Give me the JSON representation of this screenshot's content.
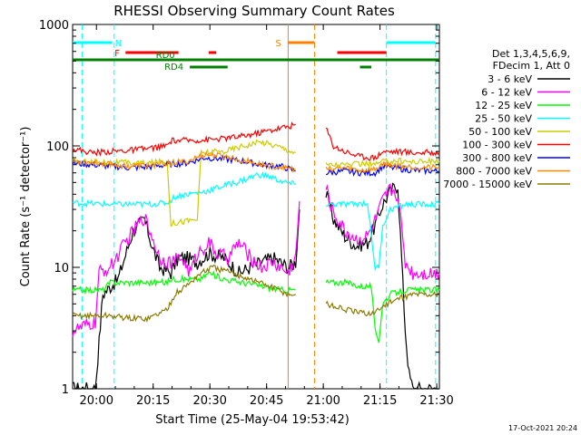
{
  "chart_data": {
    "type": "line",
    "title": "RHESSI Observing Summary Count Rates",
    "xlabel": "Start Time (25-May-04 19:53:42)",
    "ylabel": "Count Rate (s⁻¹ detector⁻¹)",
    "yscale": "log",
    "ylim": [
      1,
      1000
    ],
    "xlim_minutes_after_19_53_42": [
      0,
      97
    ],
    "x_ticks": [
      "20:00",
      "20:15",
      "20:30",
      "20:45",
      "21:00",
      "21:15",
      "21:30"
    ],
    "y_ticks": [
      "1",
      "10",
      "100",
      "1000"
    ],
    "timestamp": "17-Oct-2021 20:24",
    "legend_header": [
      "Det 1,3,4,5,6,9,",
      "FDecim 1, Att 0"
    ],
    "legend_position": "right",
    "series": [
      {
        "name": "3 - 6 keV",
        "color": "#000000",
        "points": [
          [
            0,
            1.0
          ],
          [
            6,
            1.0
          ],
          [
            8,
            6.0
          ],
          [
            12,
            8
          ],
          [
            16,
            20
          ],
          [
            19,
            25
          ],
          [
            21,
            15
          ],
          [
            23,
            10
          ],
          [
            26,
            9
          ],
          [
            28,
            12
          ],
          [
            30,
            12
          ],
          [
            33,
            11
          ],
          [
            36,
            13
          ],
          [
            40,
            12
          ],
          [
            44,
            9
          ],
          [
            47,
            10
          ],
          [
            50,
            11
          ],
          [
            53,
            12
          ],
          [
            57,
            10
          ],
          [
            59,
            11
          ],
          [
            60,
            30
          ],
          [
            67,
            40
          ],
          [
            69,
            25
          ],
          [
            72,
            18
          ],
          [
            75,
            15
          ],
          [
            78,
            16
          ],
          [
            80,
            22
          ],
          [
            82,
            33
          ],
          [
            84,
            42
          ],
          [
            86,
            48
          ],
          [
            88,
            3
          ],
          [
            89,
            1.3
          ],
          [
            90,
            1.0
          ],
          [
            97,
            1.0
          ]
        ]
      },
      {
        "name": "6 - 12 keV",
        "color": "#ff00ff",
        "points": [
          [
            0,
            3.0
          ],
          [
            6,
            3.5
          ],
          [
            7,
            9
          ],
          [
            10,
            10
          ],
          [
            14,
            16
          ],
          [
            17,
            22
          ],
          [
            19,
            26
          ],
          [
            21,
            18
          ],
          [
            23,
            12
          ],
          [
            26,
            11
          ],
          [
            29,
            12
          ],
          [
            31,
            9
          ],
          [
            33,
            13
          ],
          [
            36,
            16
          ],
          [
            38,
            13
          ],
          [
            41,
            12
          ],
          [
            44,
            16
          ],
          [
            47,
            12
          ],
          [
            50,
            10
          ],
          [
            53,
            11
          ],
          [
            57,
            9
          ],
          [
            59,
            12
          ],
          [
            60,
            35
          ],
          [
            67,
            45
          ],
          [
            69,
            28
          ],
          [
            72,
            20
          ],
          [
            75,
            17
          ],
          [
            78,
            18
          ],
          [
            80,
            24
          ],
          [
            82,
            35
          ],
          [
            84,
            44
          ],
          [
            86,
            40
          ],
          [
            88,
            11
          ],
          [
            90,
            9
          ],
          [
            92,
            9
          ],
          [
            97,
            9
          ]
        ]
      },
      {
        "name": "12 - 25 keV",
        "color": "#00ff00",
        "points": [
          [
            0,
            6.5
          ],
          [
            8,
            6.5
          ],
          [
            10,
            7.5
          ],
          [
            16,
            7.5
          ],
          [
            25,
            7.5
          ],
          [
            26,
            8
          ],
          [
            30,
            8
          ],
          [
            34,
            8
          ],
          [
            36,
            9
          ],
          [
            40,
            8
          ],
          [
            45,
            7.5
          ],
          [
            50,
            7
          ],
          [
            55,
            6.5
          ],
          [
            59,
            6.5
          ],
          [
            67,
            7.5
          ],
          [
            72,
            7.5
          ],
          [
            76,
            7
          ],
          [
            79,
            7
          ],
          [
            80,
            3.0
          ],
          [
            81,
            2.5
          ],
          [
            82,
            5
          ],
          [
            84,
            6
          ],
          [
            88,
            6.5
          ],
          [
            97,
            6.5
          ]
        ]
      },
      {
        "name": "25 - 50 keV",
        "color": "#00ffff",
        "points": [
          [
            0,
            34
          ],
          [
            10,
            33
          ],
          [
            20,
            33
          ],
          [
            25,
            34
          ],
          [
            27,
            38
          ],
          [
            30,
            40
          ],
          [
            35,
            42
          ],
          [
            40,
            47
          ],
          [
            45,
            52
          ],
          [
            49,
            58
          ],
          [
            52,
            56
          ],
          [
            56,
            50
          ],
          [
            59,
            48
          ],
          [
            67,
            33
          ],
          [
            74,
            33
          ],
          [
            78,
            34
          ],
          [
            80,
            10
          ],
          [
            81,
            10
          ],
          [
            82,
            22
          ],
          [
            84,
            30
          ],
          [
            88,
            33
          ],
          [
            97,
            33
          ]
        ]
      },
      {
        "name": "50 - 100 keV",
        "color": "#cccc00",
        "points": [
          [
            0,
            74
          ],
          [
            10,
            73
          ],
          [
            20,
            72
          ],
          [
            25,
            75
          ],
          [
            26,
            23
          ],
          [
            33,
            25
          ],
          [
            34,
            88
          ],
          [
            40,
            90
          ],
          [
            45,
            100
          ],
          [
            50,
            108
          ],
          [
            54,
            100
          ],
          [
            59,
            88
          ],
          [
            67,
            70
          ],
          [
            74,
            70
          ],
          [
            78,
            72
          ],
          [
            80,
            70
          ],
          [
            82,
            74
          ],
          [
            86,
            76
          ],
          [
            90,
            74
          ],
          [
            97,
            75
          ]
        ]
      },
      {
        "name": "100 - 300 keV",
        "color": "#ff0000",
        "points": [
          [
            0,
            95
          ],
          [
            5,
            88
          ],
          [
            10,
            90
          ],
          [
            15,
            92
          ],
          [
            20,
            95
          ],
          [
            25,
            100
          ],
          [
            26,
            110
          ],
          [
            35,
            112
          ],
          [
            40,
            115
          ],
          [
            45,
            120
          ],
          [
            50,
            130
          ],
          [
            55,
            140
          ],
          [
            59,
            150
          ],
          [
            67,
            140
          ],
          [
            69,
            100
          ],
          [
            72,
            90
          ],
          [
            76,
            82
          ],
          [
            80,
            80
          ],
          [
            82,
            90
          ],
          [
            86,
            90
          ],
          [
            90,
            88
          ],
          [
            97,
            88
          ]
        ]
      },
      {
        "name": "300 - 800 keV",
        "color": "#0000ff",
        "points": [
          [
            0,
            72
          ],
          [
            10,
            68
          ],
          [
            15,
            66
          ],
          [
            20,
            67
          ],
          [
            25,
            70
          ],
          [
            30,
            72
          ],
          [
            35,
            80
          ],
          [
            40,
            78
          ],
          [
            45,
            75
          ],
          [
            50,
            70
          ],
          [
            55,
            68
          ],
          [
            59,
            62
          ],
          [
            67,
            60
          ],
          [
            72,
            62
          ],
          [
            76,
            60
          ],
          [
            80,
            60
          ],
          [
            82,
            68
          ],
          [
            86,
            65
          ],
          [
            90,
            63
          ],
          [
            97,
            62
          ]
        ]
      },
      {
        "name": "800 - 7000 keV",
        "color": "#ff8800",
        "points": [
          [
            0,
            75
          ],
          [
            10,
            71
          ],
          [
            15,
            68
          ],
          [
            20,
            69
          ],
          [
            25,
            72
          ],
          [
            30,
            74
          ],
          [
            35,
            85
          ],
          [
            40,
            82
          ],
          [
            45,
            76
          ],
          [
            50,
            70
          ],
          [
            55,
            67
          ],
          [
            59,
            64
          ],
          [
            67,
            64
          ],
          [
            72,
            66
          ],
          [
            76,
            63
          ],
          [
            80,
            64
          ],
          [
            82,
            71
          ],
          [
            86,
            69
          ],
          [
            90,
            67
          ],
          [
            97,
            66
          ]
        ]
      },
      {
        "name": "7000 - 15000 keV",
        "color": "#8b7b00",
        "points": [
          [
            0,
            4.0
          ],
          [
            5,
            4.0
          ],
          [
            10,
            4.0
          ],
          [
            15,
            3.8
          ],
          [
            20,
            3.8
          ],
          [
            25,
            4.5
          ],
          [
            27,
            6
          ],
          [
            30,
            7
          ],
          [
            34,
            9
          ],
          [
            37,
            10
          ],
          [
            42,
            9
          ],
          [
            47,
            8
          ],
          [
            52,
            7
          ],
          [
            57,
            6
          ],
          [
            59,
            6
          ],
          [
            67,
            5
          ],
          [
            72,
            4.5
          ],
          [
            76,
            4.2
          ],
          [
            80,
            4.2
          ],
          [
            82,
            4.8
          ],
          [
            86,
            5.5
          ],
          [
            90,
            6
          ],
          [
            97,
            6
          ]
        ]
      }
    ],
    "vertical_markers": [
      {
        "minute": 2.5,
        "color": "#00ffff",
        "style": "dashed"
      },
      {
        "minute": 11,
        "color": "#00ffff",
        "style": "dashed"
      },
      {
        "minute": 83,
        "color": "#00ffff",
        "style": "dashed"
      },
      {
        "minute": 96,
        "color": "#00ffff",
        "style": "dashed"
      },
      {
        "minute": 57,
        "color": "#ff8000",
        "style": "solid"
      },
      {
        "minute": 64,
        "color": "#ff8000",
        "style": "dashed"
      }
    ],
    "flag_bars": [
      {
        "label": "N",
        "color": "#00ffff",
        "row": 1,
        "segments": [
          [
            0,
            10.5
          ],
          [
            83,
            96
          ]
        ]
      },
      {
        "label": "S",
        "color": "#ff8000",
        "row": 1,
        "segments": [
          [
            57,
            64
          ]
        ]
      },
      {
        "label": "F",
        "color": "#ff0000",
        "row": 2,
        "segments": [
          [
            14,
            28
          ],
          [
            36,
            38
          ],
          [
            70,
            83
          ]
        ]
      },
      {
        "label": "RD0",
        "color": "#008000",
        "row": 3,
        "segments": [
          [
            0,
            97
          ]
        ]
      },
      {
        "label": "RD4",
        "color": "#008000",
        "row": 4,
        "segments": [
          [
            31,
            41
          ],
          [
            76,
            79
          ]
        ]
      }
    ]
  }
}
